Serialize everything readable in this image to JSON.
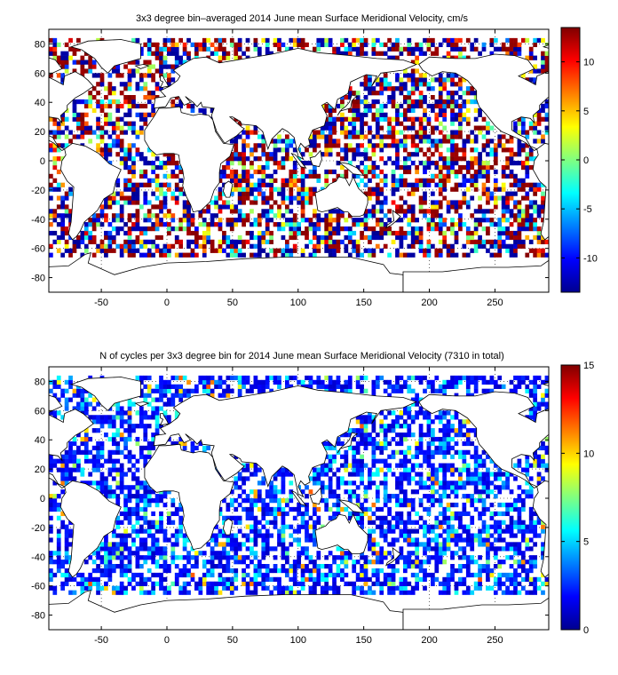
{
  "chart_data": [
    {
      "type": "heatmap",
      "title": "3x3 degree bin–averaged 2014 June mean Surface Meridional Velocity, cm/s",
      "xlim": [
        -90,
        291
      ],
      "ylim": [
        -90,
        90
      ],
      "x_ticks": [
        -50,
        0,
        50,
        100,
        150,
        200,
        250
      ],
      "y_ticks": [
        -80,
        -60,
        -40,
        -20,
        0,
        20,
        40,
        60,
        80
      ],
      "grid": "dotted",
      "colorbar": {
        "range": [
          -13.5,
          13.5
        ],
        "ticks": [
          -10,
          -5,
          0,
          5,
          10
        ],
        "colormap": "jet",
        "position": "right"
      },
      "bin_size_deg": 3,
      "cell_value_range": [
        -13.5,
        13.5
      ],
      "value_distribution": "extremes dominant (many cells saturated at ±13)",
      "data_coverage": "ocean areas between about 65S and 85N; land areas empty"
    },
    {
      "type": "heatmap",
      "title": "N of cycles per 3x3 degree bin for 2014 June mean Surface Meridional Velocity (7310 in total)",
      "xlim": [
        -90,
        291
      ],
      "ylim": [
        -90,
        90
      ],
      "x_ticks": [
        -50,
        0,
        50,
        100,
        150,
        200,
        250
      ],
      "y_ticks": [
        -80,
        -60,
        -40,
        -20,
        0,
        20,
        40,
        60,
        80
      ],
      "grid": "dotted",
      "colorbar": {
        "range": [
          0,
          15
        ],
        "ticks": [
          0,
          5,
          10,
          15
        ],
        "colormap": "jet",
        "position": "right"
      },
      "bin_size_deg": 3,
      "total_cycles": 7310,
      "cell_value_range": [
        1,
        15
      ],
      "value_distribution": "mostly 1–3 per bin, occasional up to ~12",
      "data_coverage": "ocean areas between about 65S and 85N; land areas empty"
    }
  ]
}
